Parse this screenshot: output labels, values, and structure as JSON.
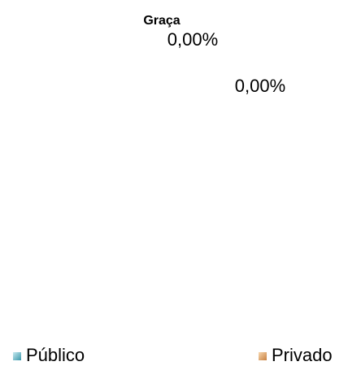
{
  "chart_data": {
    "type": "pie",
    "title": "Graça",
    "categories": [
      "Público",
      "Privado"
    ],
    "values": [
      0,
      0
    ],
    "value_labels": [
      "0,00%",
      "0,00%"
    ],
    "colors": [
      "#5fb8c8",
      "#e8a868"
    ],
    "legend": "bottom"
  }
}
